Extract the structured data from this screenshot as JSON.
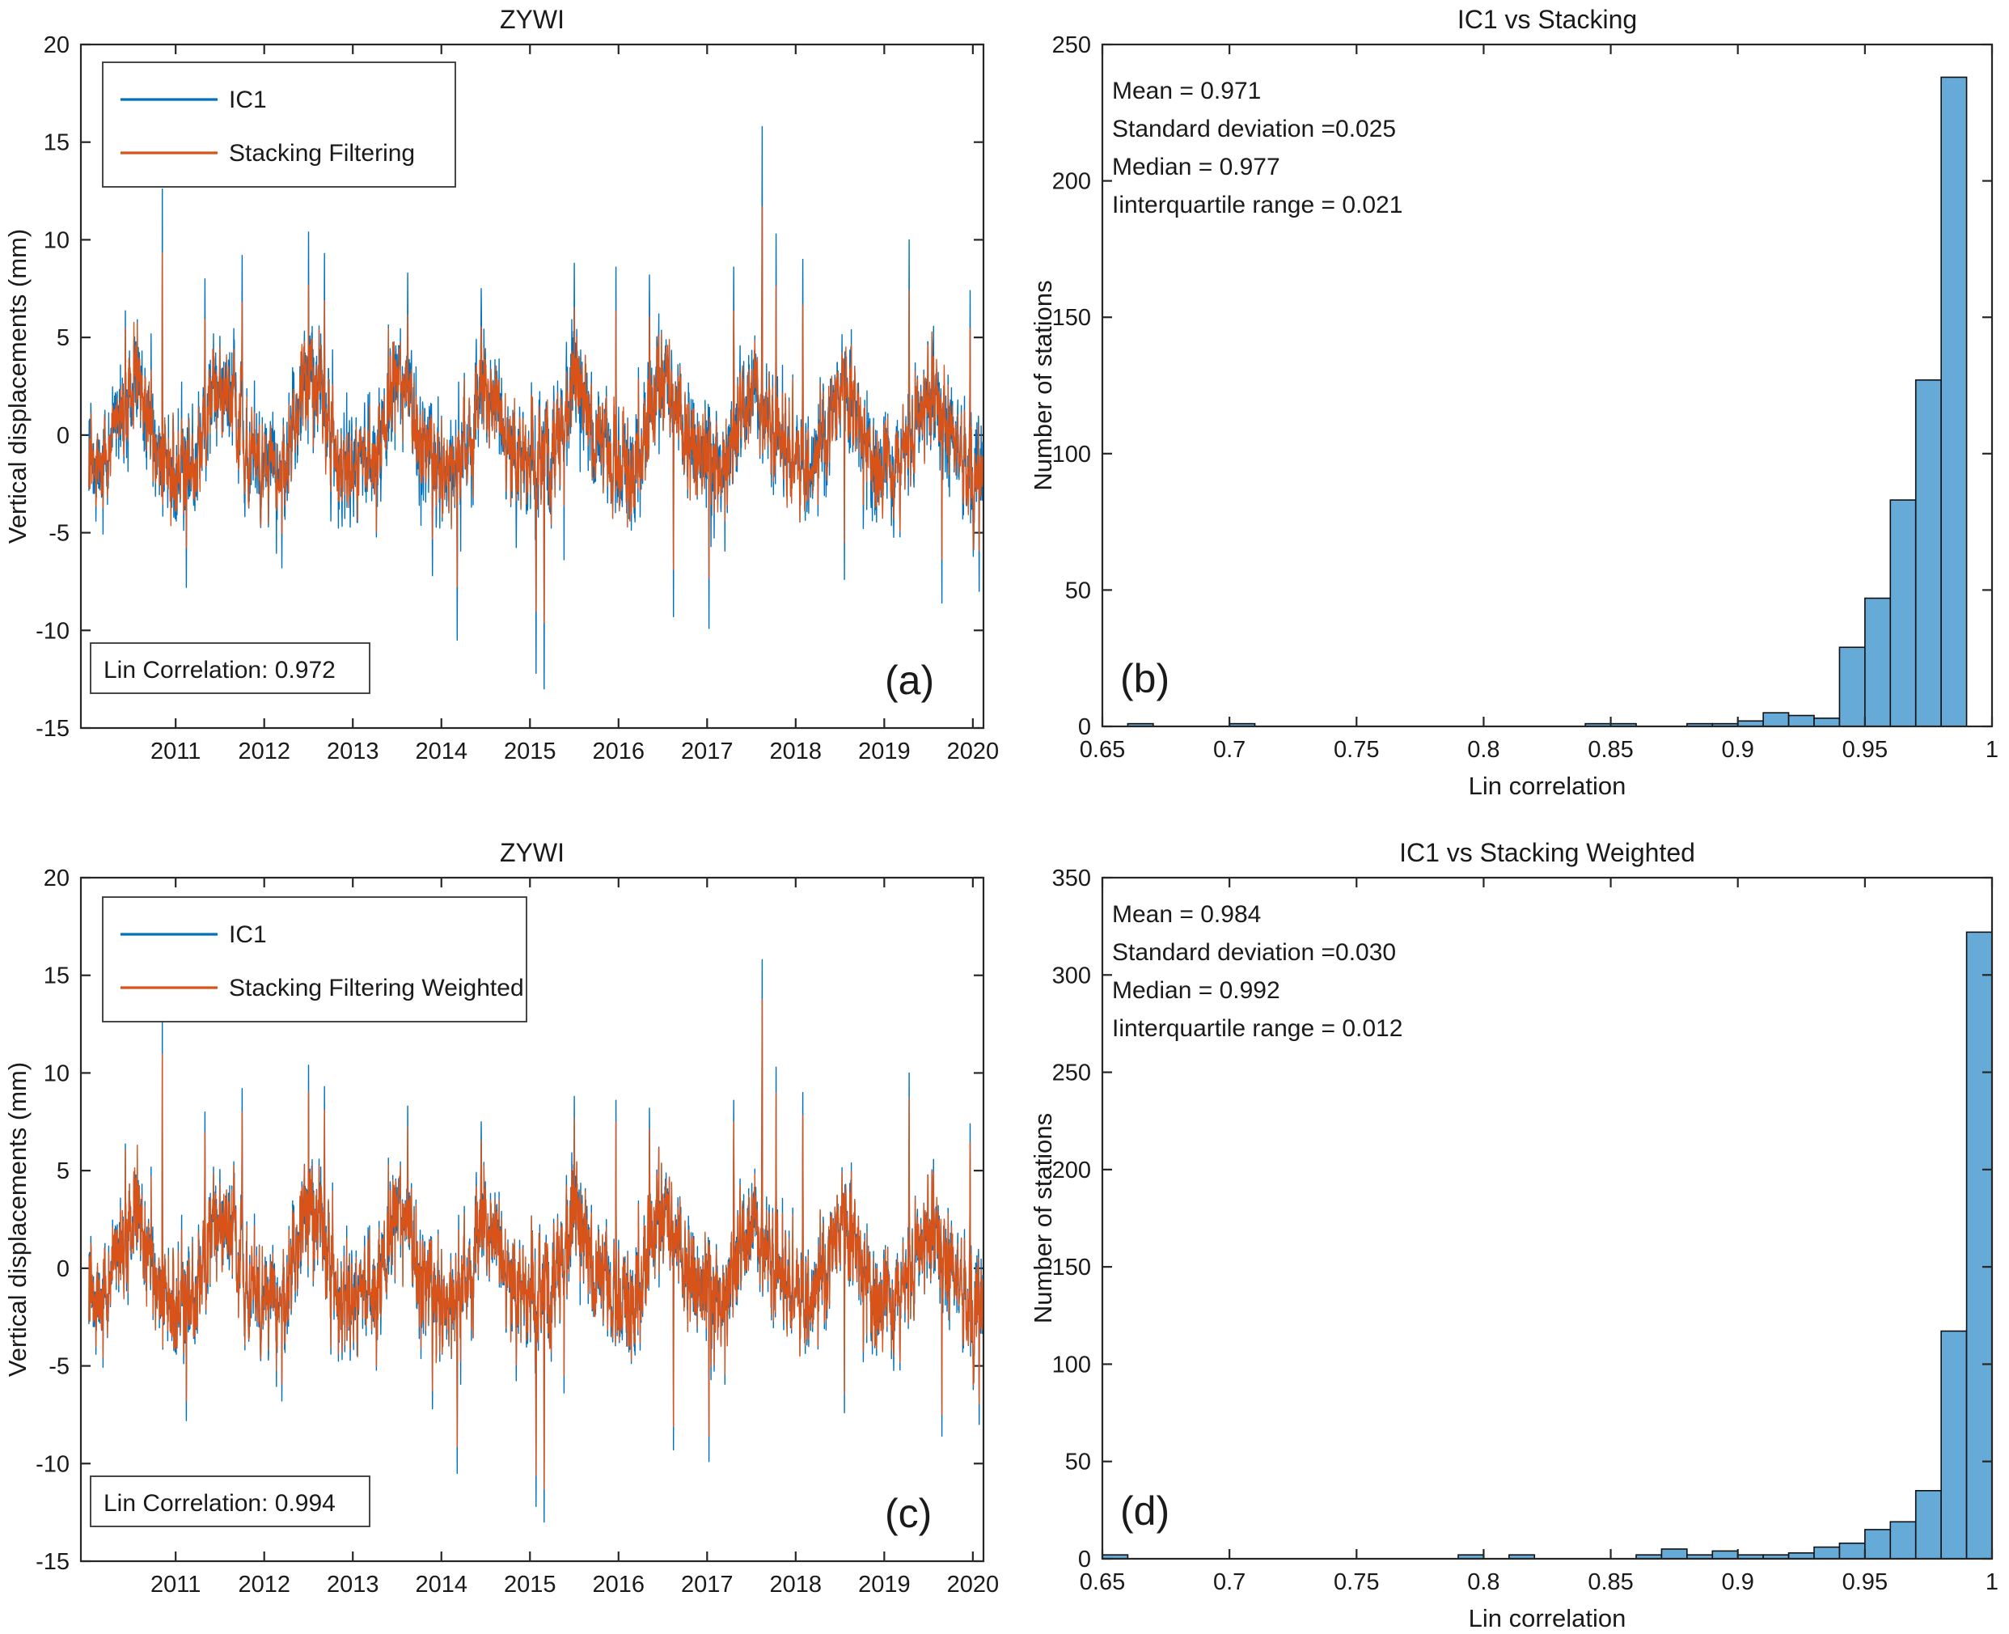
{
  "page": {
    "background": "#ffffff"
  },
  "chart_data": [
    {
      "panel": "a",
      "type": "line",
      "title": "ZYWI",
      "xlabel": "",
      "ylabel": "Vertical displacements (mm)",
      "xlim": [
        2009.93,
        2020.12
      ],
      "ylim": [
        -15,
        20
      ],
      "xticks": [
        2011,
        2012,
        2013,
        2014,
        2015,
        2016,
        2017,
        2018,
        2019,
        2020
      ],
      "yticks": [
        -15,
        -10,
        -5,
        0,
        5,
        10,
        15,
        20
      ],
      "legend_entries": [
        {
          "label": "IC1",
          "color": "#0072BD"
        },
        {
          "label": "Stacking Filtering",
          "color": "#D95319"
        }
      ],
      "legend_position": "top-left",
      "annotation_box": "Lin Correlation: 0.972",
      "panel_label": "(a)",
      "grid": false,
      "data_time_range": [
        2010.02,
        2020.11
      ],
      "pattern": {
        "description": "Two nearly overlapping daily GPS vertical displacement series; IC1 (blue) has larger scatter and is drawn under the orange filtered series. Typical band -5..5 mm with ~2 mm annual oscillation.",
        "typical_band_mm": [
          -5,
          5
        ],
        "seasonal_amplitude_mm": 2,
        "spikes_up": [
          [
            2010.85,
            12.6
          ],
          [
            2011.33,
            8.0
          ],
          [
            2011.75,
            9.2
          ],
          [
            2012.5,
            10.4
          ],
          [
            2012.68,
            9.3
          ],
          [
            2013.62,
            8.3
          ],
          [
            2014.45,
            7.5
          ],
          [
            2015.5,
            8.8
          ],
          [
            2015.97,
            8.6
          ],
          [
            2016.35,
            8.2
          ],
          [
            2017.3,
            8.6
          ],
          [
            2017.62,
            15.8
          ],
          [
            2017.78,
            10.3
          ],
          [
            2018.08,
            9.0
          ],
          [
            2019.28,
            10.0
          ],
          [
            2019.97,
            7.4
          ]
        ],
        "spikes_down": [
          [
            2011.12,
            -7.8
          ],
          [
            2012.2,
            -6.8
          ],
          [
            2013.9,
            -7.2
          ],
          [
            2014.18,
            -10.5
          ],
          [
            2015.07,
            -12.2
          ],
          [
            2015.16,
            -13.0
          ],
          [
            2016.62,
            -9.3
          ],
          [
            2017.02,
            -9.9
          ],
          [
            2018.55,
            -7.4
          ],
          [
            2019.65,
            -8.6
          ],
          [
            2020.07,
            -8.0
          ]
        ]
      }
    },
    {
      "panel": "b",
      "type": "bar",
      "title": "IC1 vs Stacking",
      "xlabel": "Lin correlation",
      "ylabel": "Number of stations",
      "xlim": [
        0.65,
        1
      ],
      "ylim": [
        0,
        250
      ],
      "xticks": [
        0.65,
        0.7,
        0.75,
        0.8,
        0.85,
        0.9,
        0.95,
        1
      ],
      "xtick_labels": [
        "0.65",
        "0.7",
        "0.75",
        "0.8",
        "0.85",
        "0.9",
        "0.95",
        "1"
      ],
      "yticks": [
        0,
        50,
        100,
        150,
        200,
        250
      ],
      "bin_width": 0.01,
      "bins": [
        [
          0.66,
          1
        ],
        [
          0.7,
          1
        ],
        [
          0.84,
          1
        ],
        [
          0.85,
          1
        ],
        [
          0.88,
          1
        ],
        [
          0.89,
          1
        ],
        [
          0.9,
          2
        ],
        [
          0.91,
          5
        ],
        [
          0.92,
          4
        ],
        [
          0.93,
          3
        ],
        [
          0.94,
          29
        ],
        [
          0.95,
          47
        ],
        [
          0.96,
          83
        ],
        [
          0.97,
          127
        ],
        [
          0.98,
          238
        ]
      ],
      "stats_lines": [
        "Mean = 0.971",
        "Standard deviation =0.025",
        "Median = 0.977",
        "Iinterquartile range = 0.021"
      ],
      "bar_fill": "#66AAD7",
      "bar_edge": "#111111",
      "panel_label": "(b)",
      "grid": false
    },
    {
      "panel": "c",
      "type": "line",
      "title": "ZYWI",
      "xlabel": "",
      "ylabel": "Vertical displacements (mm)",
      "xlim": [
        2009.93,
        2020.12
      ],
      "ylim": [
        -15,
        20
      ],
      "xticks": [
        2011,
        2012,
        2013,
        2014,
        2015,
        2016,
        2017,
        2018,
        2019,
        2020
      ],
      "yticks": [
        -15,
        -10,
        -5,
        0,
        5,
        10,
        15,
        20
      ],
      "legend_entries": [
        {
          "label": "IC1",
          "color": "#0072BD"
        },
        {
          "label": "Stacking Filtering Weighted",
          "color": "#D95319"
        }
      ],
      "legend_position": "top-left",
      "annotation_box": "Lin Correlation: 0.994",
      "panel_label": "(c)",
      "grid": false,
      "data_time_range": [
        2010.02,
        2020.11
      ],
      "series_note": "IC1 series identical to panel (a); the weighted orange series tracks IC1 more closely than in panel (a)."
    },
    {
      "panel": "d",
      "type": "bar",
      "title": "IC1 vs Stacking Weighted",
      "xlabel": "Lin correlation",
      "ylabel": "Number of stations",
      "xlim": [
        0.65,
        1
      ],
      "ylim": [
        0,
        350
      ],
      "xticks": [
        0.65,
        0.7,
        0.75,
        0.8,
        0.85,
        0.9,
        0.95,
        1
      ],
      "xtick_labels": [
        "0.65",
        "0.7",
        "0.75",
        "0.8",
        "0.85",
        "0.9",
        "0.95",
        "1"
      ],
      "yticks": [
        0,
        50,
        100,
        150,
        200,
        250,
        300,
        350
      ],
      "bin_width": 0.01,
      "bins": [
        [
          0.65,
          2
        ],
        [
          0.79,
          2
        ],
        [
          0.81,
          2
        ],
        [
          0.86,
          2
        ],
        [
          0.87,
          5
        ],
        [
          0.88,
          2
        ],
        [
          0.89,
          4
        ],
        [
          0.9,
          2
        ],
        [
          0.91,
          2
        ],
        [
          0.92,
          3
        ],
        [
          0.93,
          6
        ],
        [
          0.94,
          8
        ],
        [
          0.95,
          15
        ],
        [
          0.96,
          19
        ],
        [
          0.97,
          35
        ],
        [
          0.98,
          117
        ],
        [
          0.99,
          322
        ]
      ],
      "stats_lines": [
        "Mean = 0.984",
        "Standard deviation =0.030",
        "Median = 0.992",
        "Iinterquartile range = 0.012"
      ],
      "bar_fill": "#66AAD7",
      "bar_edge": "#111111",
      "panel_label": "(d)",
      "grid": false
    }
  ]
}
